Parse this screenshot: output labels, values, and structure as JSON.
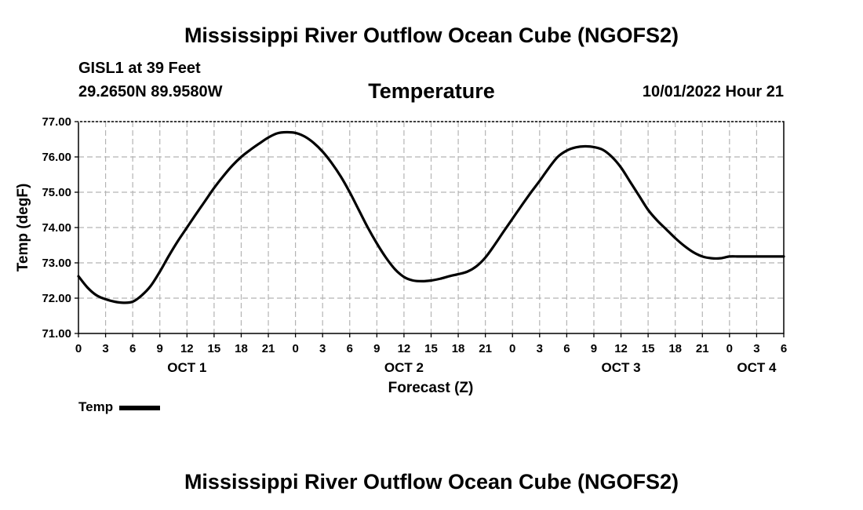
{
  "header": {
    "title": "Mississippi River Outflow Ocean Cube (NGOFS2)",
    "station": "GISL1 at 39 Feet",
    "coords": "29.2650N  89.9580W",
    "subtitle": "Temperature",
    "datetime": "10/01/2022 Hour 21"
  },
  "footer": {
    "title": "Mississippi River Outflow Ocean Cube (NGOFS2)"
  },
  "legend": {
    "label": "Temp",
    "color": "#000000"
  },
  "chart_data": {
    "type": "line",
    "title": "Temperature",
    "xlabel": "Forecast (Z)",
    "ylabel": "Temp (degF)",
    "xlim": [
      0,
      78
    ],
    "ylim": [
      71.0,
      77.0
    ],
    "x_ticks": [
      0,
      3,
      6,
      9,
      12,
      15,
      18,
      21,
      24,
      27,
      30,
      33,
      36,
      39,
      42,
      45,
      48,
      51,
      54,
      57,
      60,
      63,
      66,
      69,
      72,
      75,
      78
    ],
    "x_tick_labels": [
      "0",
      "3",
      "6",
      "9",
      "12",
      "15",
      "18",
      "21",
      "0",
      "3",
      "6",
      "9",
      "12",
      "15",
      "18",
      "21",
      "0",
      "3",
      "6",
      "9",
      "12",
      "15",
      "18",
      "21",
      "0",
      "3",
      "6"
    ],
    "y_ticks": [
      71,
      72,
      73,
      74,
      75,
      76,
      77
    ],
    "y_tick_labels": [
      "71.00",
      "72.00",
      "73.00",
      "74.00",
      "75.00",
      "76.00",
      "77.00"
    ],
    "day_labels": [
      {
        "x": 12,
        "label": "OCT 1"
      },
      {
        "x": 36,
        "label": "OCT 2"
      },
      {
        "x": 60,
        "label": "OCT 3"
      },
      {
        "x": 75,
        "label": "OCT 4"
      }
    ],
    "grid": true,
    "series": [
      {
        "name": "Temp",
        "x": [
          0,
          1,
          2,
          3,
          4,
          5,
          6,
          7,
          8,
          9,
          10,
          11,
          12,
          13,
          14,
          15,
          16,
          17,
          18,
          19,
          20,
          21,
          22,
          23,
          24,
          25,
          26,
          27,
          28,
          29,
          30,
          31,
          32,
          33,
          34,
          35,
          36,
          37,
          38,
          39,
          40,
          41,
          42,
          43,
          44,
          45,
          46,
          47,
          48,
          49,
          50,
          51,
          52,
          53,
          54,
          55,
          56,
          57,
          58,
          59,
          60,
          61,
          62,
          63,
          64,
          65,
          66,
          67,
          68,
          69,
          70,
          71,
          72,
          73,
          74,
          75,
          76,
          77,
          78
        ],
        "values": [
          72.62,
          72.3,
          72.08,
          71.97,
          71.9,
          71.87,
          71.9,
          72.08,
          72.35,
          72.75,
          73.2,
          73.62,
          74.0,
          74.38,
          74.75,
          75.12,
          75.45,
          75.75,
          76.0,
          76.2,
          76.38,
          76.55,
          76.67,
          76.7,
          76.68,
          76.58,
          76.4,
          76.15,
          75.83,
          75.45,
          75.0,
          74.5,
          74.0,
          73.55,
          73.15,
          72.82,
          72.6,
          72.5,
          72.48,
          72.5,
          72.55,
          72.62,
          72.68,
          72.75,
          72.9,
          73.15,
          73.5,
          73.88,
          74.25,
          74.62,
          74.98,
          75.32,
          75.68,
          76.0,
          76.18,
          76.27,
          76.3,
          76.28,
          76.2,
          76.0,
          75.7,
          75.3,
          74.9,
          74.5,
          74.2,
          73.95,
          73.7,
          73.48,
          73.3,
          73.18,
          73.13,
          73.13,
          73.18,
          73.18,
          73.18,
          73.18,
          73.18,
          73.18,
          73.18
        ]
      }
    ]
  }
}
